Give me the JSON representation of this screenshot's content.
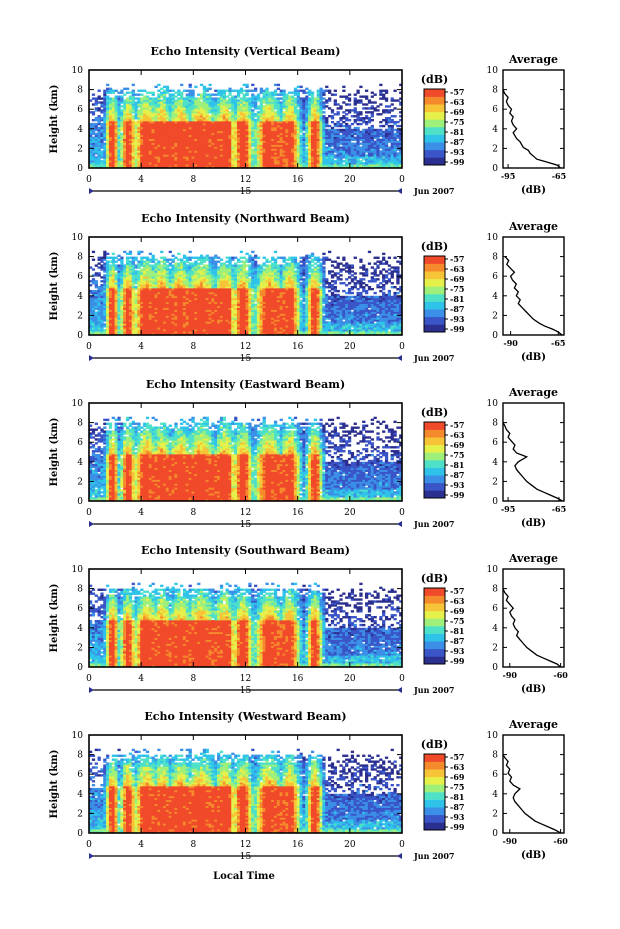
{
  "figure": {
    "x_axis_label": "Local Time",
    "date_marker": "15",
    "month_label": "Jun 2007"
  },
  "colors": {
    "scale": [
      "#2b2f8f",
      "#3a55c8",
      "#3b8fe6",
      "#2fc3ea",
      "#4fe0c8",
      "#9ef07a",
      "#e6f04a",
      "#f7c437",
      "#f58a2c",
      "#f04a2a"
    ],
    "line": "#000000",
    "masked": "#ffffff"
  },
  "chart_data": [
    {
      "type": "heatmap",
      "title": "Echo Intensity (Vertical Beam)",
      "xlabel": "",
      "ylabel": "Height (km)",
      "xlim": [
        0,
        24
      ],
      "ylim": [
        0,
        10
      ],
      "xticks": [
        "0",
        "4",
        "8",
        "12",
        "16",
        "20",
        "0"
      ],
      "yticks": [
        "0",
        "2",
        "4",
        "6",
        "8",
        "10"
      ],
      "colorbar": {
        "label": "(dB)",
        "ticks": [
          "-57",
          "-63",
          "-69",
          "-75",
          "-81",
          "-87",
          "-93",
          "-99"
        ]
      },
      "convective_columns": [
        [
          1.8,
          0.5
        ],
        [
          3.0,
          0.6
        ],
        [
          4.4,
          1.0
        ],
        [
          5.6,
          0.8
        ],
        [
          7.0,
          0.9
        ],
        [
          8.6,
          1.2
        ],
        [
          10.4,
          0.9
        ],
        [
          11.8,
          0.8
        ],
        [
          13.8,
          1.1
        ],
        [
          15.4,
          0.8
        ],
        [
          17.3,
          0.6
        ]
      ],
      "profile": {
        "title": "Average",
        "xlabel": "(dB)",
        "xticks": [
          "-95",
          "-65"
        ],
        "xlim": [
          -98,
          -62
        ],
        "ylim": [
          0,
          10
        ],
        "yticks": [
          "0",
          "2",
          "4",
          "6",
          "8",
          "10"
        ],
        "points": [
          [
            -64,
            0.0
          ],
          [
            -66,
            0.3
          ],
          [
            -70,
            0.5
          ],
          [
            -74,
            0.7
          ],
          [
            -78,
            0.9
          ],
          [
            -80,
            1.2
          ],
          [
            -82,
            1.5
          ],
          [
            -83,
            1.8
          ],
          [
            -86,
            2.1
          ],
          [
            -87,
            2.4
          ],
          [
            -88,
            2.7
          ],
          [
            -90,
            3.0
          ],
          [
            -91,
            3.3
          ],
          [
            -92,
            3.6
          ],
          [
            -90,
            4.0
          ],
          [
            -92,
            4.4
          ],
          [
            -93,
            4.8
          ],
          [
            -92,
            5.2
          ],
          [
            -94,
            5.6
          ],
          [
            -93,
            6.0
          ],
          [
            -95,
            6.4
          ],
          [
            -96,
            6.8
          ],
          [
            -95,
            7.2
          ],
          [
            -97,
            7.6
          ],
          [
            -98,
            8.0
          ]
        ]
      }
    },
    {
      "type": "heatmap",
      "title": "Echo Intensity (Northward Beam)",
      "xlabel": "",
      "ylabel": "Height (km)",
      "xlim": [
        0,
        24
      ],
      "ylim": [
        0,
        10
      ],
      "xticks": [
        "0",
        "4",
        "8",
        "12",
        "16",
        "20",
        "0"
      ],
      "yticks": [
        "0",
        "2",
        "4",
        "6",
        "8",
        "10"
      ],
      "colorbar": {
        "label": "(dB)",
        "ticks": [
          "-57",
          "-63",
          "-69",
          "-75",
          "-81",
          "-87",
          "-93",
          "-99"
        ]
      },
      "convective_columns": [
        [
          1.8,
          0.5
        ],
        [
          3.0,
          0.6
        ],
        [
          4.4,
          1.0
        ],
        [
          5.6,
          0.8
        ],
        [
          7.0,
          0.9
        ],
        [
          8.6,
          1.2
        ],
        [
          10.4,
          0.9
        ],
        [
          11.8,
          0.8
        ],
        [
          13.8,
          1.1
        ],
        [
          15.4,
          0.8
        ],
        [
          17.3,
          0.6
        ]
      ],
      "profile": {
        "title": "Average",
        "xlabel": "(dB)",
        "xticks": [
          "-90",
          "-65"
        ],
        "xlim": [
          -94,
          -62
        ],
        "ylim": [
          0,
          10
        ],
        "yticks": [
          "0",
          "2",
          "4",
          "6",
          "8",
          "10"
        ],
        "points": [
          [
            -63,
            0.0
          ],
          [
            -65,
            0.3
          ],
          [
            -68,
            0.6
          ],
          [
            -72,
            0.9
          ],
          [
            -75,
            1.2
          ],
          [
            -78,
            1.6
          ],
          [
            -80,
            2.0
          ],
          [
            -82,
            2.4
          ],
          [
            -84,
            2.8
          ],
          [
            -86,
            3.2
          ],
          [
            -85,
            3.6
          ],
          [
            -87,
            4.0
          ],
          [
            -86,
            4.4
          ],
          [
            -88,
            4.8
          ],
          [
            -87,
            5.2
          ],
          [
            -89,
            5.6
          ],
          [
            -90,
            6.0
          ],
          [
            -88,
            6.4
          ],
          [
            -90,
            6.8
          ],
          [
            -92,
            7.2
          ],
          [
            -91,
            7.6
          ],
          [
            -93,
            8.0
          ]
        ]
      }
    },
    {
      "type": "heatmap",
      "title": "Echo Intensity (Eastward Beam)",
      "xlabel": "",
      "ylabel": "Height (km)",
      "xlim": [
        0,
        24
      ],
      "ylim": [
        0,
        10
      ],
      "xticks": [
        "0",
        "4",
        "8",
        "12",
        "16",
        "20",
        "0"
      ],
      "yticks": [
        "0",
        "2",
        "4",
        "6",
        "8",
        "10"
      ],
      "colorbar": {
        "label": "(dB)",
        "ticks": [
          "-57",
          "-63",
          "-69",
          "-75",
          "-81",
          "-87",
          "-93",
          "-99"
        ]
      },
      "convective_columns": [
        [
          1.8,
          0.5
        ],
        [
          3.0,
          0.6
        ],
        [
          4.4,
          1.0
        ],
        [
          5.6,
          0.8
        ],
        [
          7.0,
          0.9
        ],
        [
          8.6,
          1.2
        ],
        [
          10.4,
          0.9
        ],
        [
          11.8,
          0.8
        ],
        [
          13.8,
          1.1
        ],
        [
          15.4,
          0.8
        ],
        [
          17.3,
          0.6
        ]
      ],
      "profile": {
        "title": "Average",
        "xlabel": "(dB)",
        "xticks": [
          "-95",
          "-65"
        ],
        "xlim": [
          -98,
          -62
        ],
        "ylim": [
          0,
          10
        ],
        "yticks": [
          "0",
          "2",
          "4",
          "6",
          "8",
          "10"
        ],
        "points": [
          [
            -63,
            0.0
          ],
          [
            -66,
            0.3
          ],
          [
            -70,
            0.6
          ],
          [
            -74,
            0.9
          ],
          [
            -78,
            1.2
          ],
          [
            -81,
            1.6
          ],
          [
            -84,
            2.0
          ],
          [
            -86,
            2.4
          ],
          [
            -88,
            2.8
          ],
          [
            -90,
            3.2
          ],
          [
            -91,
            3.6
          ],
          [
            -89,
            4.0
          ],
          [
            -84,
            4.5
          ],
          [
            -90,
            4.9
          ],
          [
            -92,
            5.3
          ],
          [
            -91,
            5.7
          ],
          [
            -93,
            6.1
          ],
          [
            -95,
            6.5
          ],
          [
            -94,
            6.9
          ],
          [
            -96,
            7.3
          ],
          [
            -97,
            7.7
          ],
          [
            -98,
            8.0
          ]
        ]
      }
    },
    {
      "type": "heatmap",
      "title": "Echo Intensity (Southward Beam)",
      "xlabel": "",
      "ylabel": "Height (km)",
      "xlim": [
        0,
        24
      ],
      "ylim": [
        0,
        10
      ],
      "xticks": [
        "0",
        "4",
        "8",
        "12",
        "16",
        "20",
        "0"
      ],
      "yticks": [
        "0",
        "2",
        "4",
        "6",
        "8",
        "10"
      ],
      "colorbar": {
        "label": "(dB)",
        "ticks": [
          "-57",
          "-63",
          "-69",
          "-75",
          "-81",
          "-87",
          "-93",
          "-99"
        ]
      },
      "convective_columns": [
        [
          1.8,
          0.5
        ],
        [
          3.0,
          0.6
        ],
        [
          4.4,
          1.0
        ],
        [
          5.6,
          0.8
        ],
        [
          7.0,
          0.9
        ],
        [
          8.6,
          1.2
        ],
        [
          10.4,
          0.9
        ],
        [
          11.8,
          0.8
        ],
        [
          13.8,
          1.1
        ],
        [
          15.4,
          0.8
        ],
        [
          17.3,
          0.6
        ]
      ],
      "profile": {
        "title": "Average",
        "xlabel": "(dB)",
        "xticks": [
          "-90",
          "-60"
        ],
        "xlim": [
          -94,
          -58
        ],
        "ylim": [
          0,
          10
        ],
        "yticks": [
          "0",
          "2",
          "4",
          "6",
          "8",
          "10"
        ],
        "points": [
          [
            -60,
            0.0
          ],
          [
            -62,
            0.3
          ],
          [
            -66,
            0.6
          ],
          [
            -70,
            0.9
          ],
          [
            -74,
            1.2
          ],
          [
            -77,
            1.6
          ],
          [
            -80,
            2.0
          ],
          [
            -82,
            2.4
          ],
          [
            -84,
            2.8
          ],
          [
            -86,
            3.2
          ],
          [
            -85,
            3.6
          ],
          [
            -87,
            4.0
          ],
          [
            -88,
            4.4
          ],
          [
            -87,
            4.8
          ],
          [
            -89,
            5.2
          ],
          [
            -90,
            5.6
          ],
          [
            -88,
            6.0
          ],
          [
            -90,
            6.4
          ],
          [
            -92,
            6.8
          ],
          [
            -91,
            7.2
          ],
          [
            -93,
            7.6
          ],
          [
            -94,
            8.0
          ]
        ]
      }
    },
    {
      "type": "heatmap",
      "title": "Echo Intensity (Westward Beam)",
      "xlabel": "",
      "ylabel": "Height (km)",
      "xlim": [
        0,
        24
      ],
      "ylim": [
        0,
        10
      ],
      "xticks": [
        "0",
        "4",
        "8",
        "12",
        "16",
        "20",
        "0"
      ],
      "yticks": [
        "0",
        "2",
        "4",
        "6",
        "8",
        "10"
      ],
      "colorbar": {
        "label": "(dB)",
        "ticks": [
          "-57",
          "-63",
          "-69",
          "-75",
          "-81",
          "-87",
          "-93",
          "-99"
        ]
      },
      "convective_columns": [
        [
          1.8,
          0.5
        ],
        [
          3.0,
          0.6
        ],
        [
          4.4,
          1.0
        ],
        [
          5.6,
          0.8
        ],
        [
          7.0,
          0.9
        ],
        [
          8.6,
          1.2
        ],
        [
          10.4,
          0.9
        ],
        [
          11.8,
          0.8
        ],
        [
          13.8,
          1.1
        ],
        [
          15.4,
          0.8
        ],
        [
          17.3,
          0.6
        ]
      ],
      "profile": {
        "title": "Average",
        "xlabel": "(dB)",
        "xticks": [
          "-90",
          "-60"
        ],
        "xlim": [
          -94,
          -58
        ],
        "ylim": [
          0,
          10
        ],
        "yticks": [
          "0",
          "2",
          "4",
          "6",
          "8",
          "10"
        ],
        "points": [
          [
            -60,
            0.0
          ],
          [
            -63,
            0.3
          ],
          [
            -67,
            0.6
          ],
          [
            -71,
            0.9
          ],
          [
            -75,
            1.2
          ],
          [
            -78,
            1.6
          ],
          [
            -81,
            2.0
          ],
          [
            -83,
            2.4
          ],
          [
            -85,
            2.8
          ],
          [
            -87,
            3.2
          ],
          [
            -88,
            3.6
          ],
          [
            -87,
            4.0
          ],
          [
            -84,
            4.5
          ],
          [
            -88,
            4.9
          ],
          [
            -90,
            5.3
          ],
          [
            -89,
            5.7
          ],
          [
            -91,
            6.1
          ],
          [
            -90,
            6.5
          ],
          [
            -92,
            6.9
          ],
          [
            -91,
            7.3
          ],
          [
            -93,
            7.7
          ],
          [
            -94,
            8.0
          ]
        ]
      }
    }
  ]
}
